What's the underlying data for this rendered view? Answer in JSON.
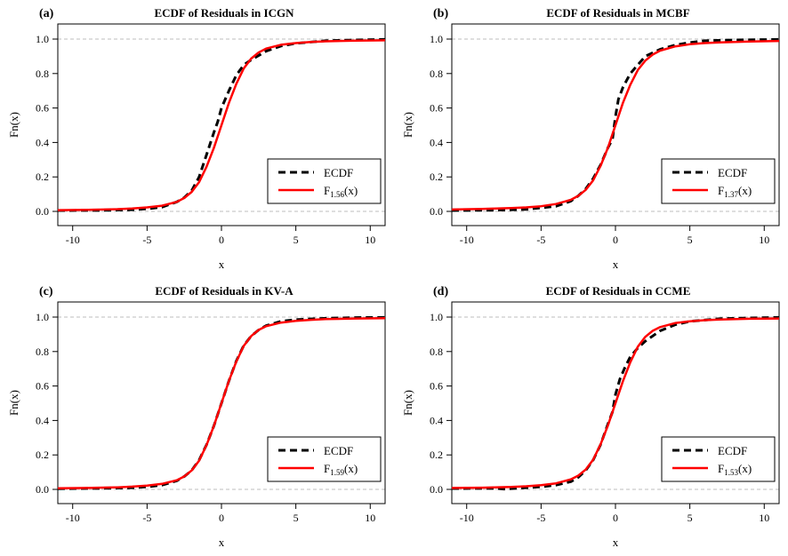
{
  "chart_data": [
    {
      "type": "line",
      "panel_tag": "(a)",
      "title": "ECDF of Residuals in ICGN",
      "xlabel": "x",
      "ylabel": "Fn(x)",
      "xlim": [
        -11,
        11
      ],
      "ylim": [
        0,
        1
      ],
      "x_ticks": [
        -10,
        -5,
        0,
        5,
        10
      ],
      "y_ticks": [
        0.0,
        0.2,
        0.4,
        0.6,
        0.8,
        1.0
      ],
      "grid": "dashed horizontal reference lines at 0 and 1",
      "legend": {
        "placement": "bottom-right",
        "ecdf_label": "ECDF",
        "fit_label_main": "F",
        "fit_label_sub": "1.56",
        "fit_label_tail": "(x)"
      },
      "series": [
        {
          "name": "ECDF",
          "style": "dashed",
          "color": "#000000",
          "x": [
            -11,
            -8,
            -6,
            -5,
            -4,
            -3,
            -2.5,
            -2,
            -1.5,
            -1,
            -0.5,
            -0.25,
            0,
            0.25,
            0.5,
            1,
            1.5,
            2,
            3,
            4,
            5,
            7,
            9,
            11
          ],
          "y": [
            0.005,
            0.006,
            0.01,
            0.015,
            0.025,
            0.055,
            0.08,
            0.12,
            0.2,
            0.33,
            0.46,
            0.52,
            0.6,
            0.65,
            0.7,
            0.79,
            0.85,
            0.88,
            0.93,
            0.96,
            0.975,
            0.99,
            0.995,
            0.998
          ]
        },
        {
          "name": "F1.56(x)",
          "style": "solid",
          "color": "#ff0000",
          "x": [
            -11,
            -9,
            -7,
            -6,
            -5,
            -4,
            -3,
            -2.5,
            -2,
            -1.5,
            -1,
            -0.5,
            0,
            0.5,
            1,
            1.5,
            2,
            2.5,
            3,
            4,
            5,
            6,
            7,
            9,
            11
          ],
          "y": [
            0.007,
            0.009,
            0.013,
            0.017,
            0.023,
            0.033,
            0.055,
            0.078,
            0.113,
            0.17,
            0.26,
            0.37,
            0.5,
            0.63,
            0.74,
            0.83,
            0.887,
            0.922,
            0.945,
            0.967,
            0.977,
            0.983,
            0.987,
            0.991,
            0.993
          ]
        }
      ]
    },
    {
      "type": "line",
      "panel_tag": "(b)",
      "title": "ECDF of Residuals in MCBF",
      "xlabel": "x",
      "ylabel": "Fn(x)",
      "xlim": [
        -11,
        11
      ],
      "ylim": [
        0,
        1
      ],
      "x_ticks": [
        -10,
        -5,
        0,
        5,
        10
      ],
      "y_ticks": [
        0.0,
        0.2,
        0.4,
        0.6,
        0.8,
        1.0
      ],
      "grid": "dashed horizontal reference lines at 0 and 1",
      "legend": {
        "placement": "bottom-right",
        "ecdf_label": "ECDF",
        "fit_label_main": "F",
        "fit_label_sub": "1.37",
        "fit_label_tail": "(x)"
      },
      "series": [
        {
          "name": "ECDF",
          "style": "dashed",
          "color": "#000000",
          "x": [
            -11,
            -8,
            -6,
            -4,
            -3,
            -2.5,
            -2,
            -1.5,
            -1,
            -0.5,
            -0.2,
            0,
            0.2,
            0.5,
            1,
            1.5,
            2,
            3,
            4,
            5,
            6,
            8,
            10,
            11
          ],
          "y": [
            0.005,
            0.007,
            0.012,
            0.03,
            0.06,
            0.09,
            0.13,
            0.19,
            0.27,
            0.37,
            0.42,
            0.55,
            0.65,
            0.72,
            0.8,
            0.85,
            0.9,
            0.94,
            0.965,
            0.98,
            0.99,
            0.995,
            0.997,
            0.998
          ]
        },
        {
          "name": "F1.37(x)",
          "style": "solid",
          "color": "#ff0000",
          "x": [
            -11,
            -9,
            -7,
            -6,
            -5,
            -4,
            -3,
            -2.5,
            -2,
            -1.5,
            -1,
            -0.5,
            0,
            0.5,
            1,
            1.5,
            2,
            2.5,
            3,
            4,
            5,
            6,
            7,
            9,
            11
          ],
          "y": [
            0.011,
            0.014,
            0.019,
            0.023,
            0.03,
            0.043,
            0.067,
            0.09,
            0.125,
            0.18,
            0.265,
            0.37,
            0.5,
            0.63,
            0.735,
            0.82,
            0.875,
            0.91,
            0.933,
            0.957,
            0.97,
            0.977,
            0.981,
            0.986,
            0.989
          ]
        }
      ]
    },
    {
      "type": "line",
      "panel_tag": "(c)",
      "title": "ECDF of Residuals in KV-A",
      "xlabel": "x",
      "ylabel": "Fn(x)",
      "xlim": [
        -11,
        11
      ],
      "ylim": [
        0,
        1
      ],
      "x_ticks": [
        -10,
        -5,
        0,
        5,
        10
      ],
      "y_ticks": [
        0.0,
        0.2,
        0.4,
        0.6,
        0.8,
        1.0
      ],
      "grid": "dashed horizontal reference lines at 0 and 1",
      "legend": {
        "placement": "bottom-right",
        "ecdf_label": "ECDF",
        "fit_label_main": "F",
        "fit_label_sub": "1.59",
        "fit_label_tail": "(x)"
      },
      "series": [
        {
          "name": "ECDF",
          "style": "dashed",
          "color": "#000000",
          "x": [
            -11,
            -8,
            -6,
            -5,
            -4,
            -3,
            -2.5,
            -2,
            -1.5,
            -1,
            -0.5,
            0,
            0.5,
            1,
            1.5,
            2,
            2.5,
            3,
            4,
            5,
            7,
            9,
            11
          ],
          "y": [
            0.004,
            0.006,
            0.01,
            0.015,
            0.025,
            0.05,
            0.075,
            0.11,
            0.17,
            0.26,
            0.37,
            0.5,
            0.63,
            0.745,
            0.835,
            0.89,
            0.925,
            0.95,
            0.975,
            0.985,
            0.993,
            0.997,
            0.998
          ]
        },
        {
          "name": "F1.59(x)",
          "style": "solid",
          "color": "#ff0000",
          "x": [
            -11,
            -9,
            -7,
            -6,
            -5,
            -4,
            -3,
            -2.5,
            -2,
            -1.5,
            -1,
            -0.5,
            0,
            0.5,
            1,
            1.5,
            2,
            2.5,
            3,
            4,
            5,
            6,
            7,
            9,
            11
          ],
          "y": [
            0.006,
            0.008,
            0.012,
            0.016,
            0.022,
            0.032,
            0.053,
            0.075,
            0.11,
            0.167,
            0.258,
            0.37,
            0.5,
            0.63,
            0.742,
            0.833,
            0.89,
            0.925,
            0.947,
            0.968,
            0.978,
            0.984,
            0.988,
            0.992,
            0.994
          ]
        }
      ]
    },
    {
      "type": "line",
      "panel_tag": "(d)",
      "title": "ECDF of Residuals in CCME",
      "xlabel": "x",
      "ylabel": "Fn(x)",
      "xlim": [
        -11,
        11
      ],
      "ylim": [
        0,
        1
      ],
      "x_ticks": [
        -10,
        -5,
        0,
        5,
        10
      ],
      "y_ticks": [
        0.0,
        0.2,
        0.4,
        0.6,
        0.8,
        1.0
      ],
      "grid": "dashed horizontal reference lines at 0 and 1",
      "legend": {
        "placement": "bottom-right",
        "ecdf_label": "ECDF",
        "fit_label_main": "F",
        "fit_label_sub": "1.53",
        "fit_label_tail": "(x)"
      },
      "series": [
        {
          "name": "ECDF",
          "style": "dashed",
          "color": "#000000",
          "x": [
            -11,
            -8,
            -7.5,
            -6,
            -5,
            -4,
            -3,
            -2.5,
            -2,
            -1.5,
            -1,
            -0.5,
            -0.2,
            0,
            0.3,
            0.6,
            1,
            1.5,
            2,
            3,
            4,
            5,
            7,
            9,
            11
          ],
          "y": [
            0.005,
            0.006,
            0.002,
            0.01,
            0.015,
            0.025,
            0.045,
            0.07,
            0.11,
            0.17,
            0.26,
            0.38,
            0.45,
            0.55,
            0.64,
            0.7,
            0.77,
            0.82,
            0.86,
            0.92,
            0.955,
            0.975,
            0.99,
            0.995,
            0.998
          ]
        },
        {
          "name": "F1.53(x)",
          "style": "solid",
          "color": "#ff0000",
          "x": [
            -11,
            -9,
            -7,
            -6,
            -5,
            -4,
            -3,
            -2.5,
            -2,
            -1.5,
            -1,
            -0.5,
            0,
            0.5,
            1,
            1.5,
            2,
            2.5,
            3,
            4,
            5,
            6,
            7,
            9,
            11
          ],
          "y": [
            0.008,
            0.01,
            0.014,
            0.018,
            0.024,
            0.035,
            0.058,
            0.08,
            0.115,
            0.172,
            0.262,
            0.372,
            0.5,
            0.628,
            0.738,
            0.828,
            0.885,
            0.92,
            0.942,
            0.965,
            0.976,
            0.982,
            0.986,
            0.99,
            0.992
          ]
        }
      ]
    }
  ]
}
